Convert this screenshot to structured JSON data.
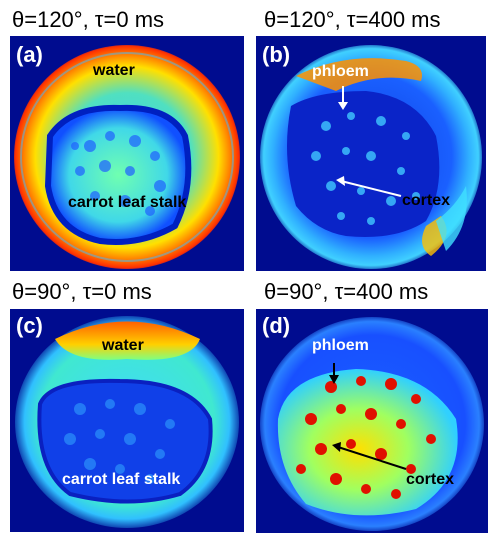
{
  "titles": {
    "a": "θ=120°, τ=0 ms",
    "b": "θ=120°, τ=400 ms",
    "c": "θ=90°, τ=0 ms",
    "d": "θ=90°, τ=400 ms"
  },
  "panels": {
    "a": {
      "label": "(a)",
      "annotations": {
        "water": "water",
        "stalk": "carrot leaf stalk"
      }
    },
    "b": {
      "label": "(b)",
      "annotations": {
        "phloem": "phloem",
        "cortex": "cortex"
      }
    },
    "c": {
      "label": "(c)",
      "annotations": {
        "water": "water",
        "stalk": "carrot leaf stalk"
      }
    },
    "d": {
      "label": "(d)",
      "annotations": {
        "phloem": "phloem",
        "cortex": "cortex"
      }
    }
  },
  "colors": {
    "background": "#000c8f",
    "water_hot": "#ff3a00",
    "water_warm": "#ffd000",
    "cyan": "#28c8ff",
    "mid_blue": "#1a6cff",
    "phloem_red": "#e01000",
    "dark_blue": "#0010a0"
  },
  "colormap": "jet"
}
